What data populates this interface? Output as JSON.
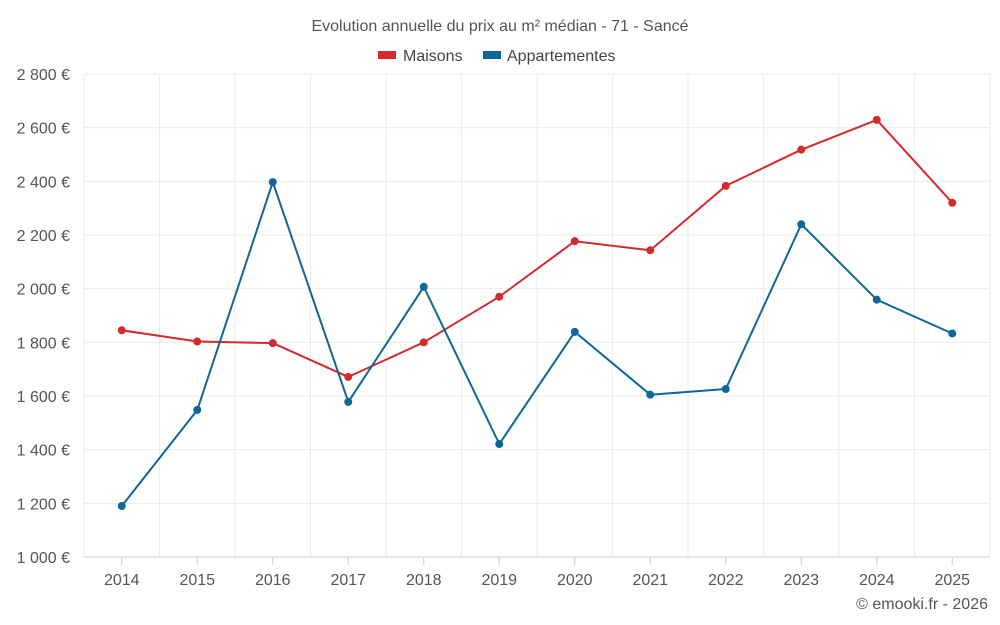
{
  "chart_data": {
    "type": "line",
    "title": "Evolution annuelle du prix au m² médian - 71 - Sancé",
    "categories": [
      "2014",
      "2015",
      "2016",
      "2017",
      "2018",
      "2019",
      "2020",
      "2021",
      "2022",
      "2023",
      "2024",
      "2025"
    ],
    "series": [
      {
        "name": "Maisons",
        "color": "#d42a2a",
        "values": [
          1845,
          1803,
          1797,
          1671,
          1800,
          1970,
          2177,
          2143,
          2383,
          2518,
          2629,
          2320
        ]
      },
      {
        "name": "Appartementes",
        "color": "#0e6699",
        "values": [
          1190,
          1548,
          2397,
          1578,
          2007,
          1421,
          1839,
          1605,
          1626,
          2240,
          1959,
          1833
        ]
      }
    ],
    "ylim": [
      1000,
      2800
    ],
    "yticks": [
      1000,
      1200,
      1400,
      1600,
      1800,
      2000,
      2200,
      2400,
      2600,
      2800
    ],
    "ytick_labels": [
      "1 000 €",
      "1 200 €",
      "1 400 €",
      "1 600 €",
      "1 800 €",
      "2 000 €",
      "2 200 €",
      "2 400 €",
      "2 600 €",
      "2 800 €"
    ],
    "xlabel": "",
    "ylabel": "",
    "legend": "top-center",
    "grid": true
  },
  "credit": "© emooki.fr - 2026"
}
